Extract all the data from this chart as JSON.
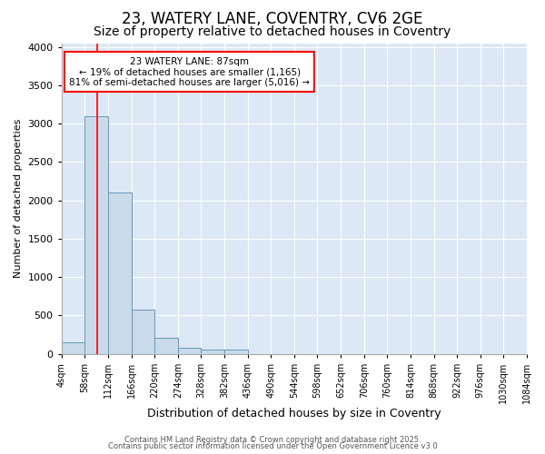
{
  "title1": "23, WATERY LANE, COVENTRY, CV6 2GE",
  "title2": "Size of property relative to detached houses in Coventry",
  "xlabel": "Distribution of detached houses by size in Coventry",
  "ylabel": "Number of detached properties",
  "bin_edges": [
    4,
    58,
    112,
    166,
    220,
    274,
    328,
    382,
    436,
    490,
    544,
    598,
    652,
    706,
    760,
    814,
    868,
    922,
    976,
    1030,
    1084
  ],
  "bar_heights": [
    150,
    3100,
    2100,
    580,
    210,
    80,
    60,
    50,
    0,
    0,
    0,
    0,
    0,
    0,
    0,
    0,
    0,
    0,
    0,
    0
  ],
  "bar_color": "#c9daea",
  "bar_edge_color": "#6699bb",
  "red_line_x": 87,
  "ylim": [
    0,
    4050
  ],
  "yticks": [
    0,
    500,
    1000,
    1500,
    2000,
    2500,
    3000,
    3500,
    4000
  ],
  "annotation_box_text": "23 WATERY LANE: 87sqm\n← 19% of detached houses are smaller (1,165)\n81% of semi-detached houses are larger (5,016) →",
  "background_color": "#dce8f5",
  "grid_color": "#ffffff",
  "footer1": "Contains HM Land Registry data © Crown copyright and database right 2025.",
  "footer2": "Contains public sector information licensed under the Open Government Licence v3.0",
  "title1_fontsize": 12,
  "title2_fontsize": 10,
  "xlabel_fontsize": 9,
  "ylabel_fontsize": 8,
  "tick_fontsize": 7,
  "footer_fontsize": 6
}
